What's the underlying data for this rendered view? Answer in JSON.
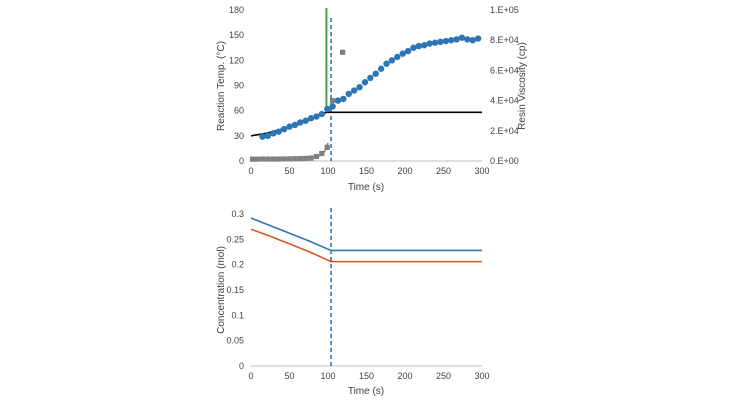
{
  "chart_data": [
    {
      "type": "scatter",
      "xlabel": "Time (s)",
      "ylabel": "Reaction Temp. (°C)",
      "y2label": "Resin Viscosity (cp)",
      "xlim": [
        0,
        300
      ],
      "ylim": [
        0,
        180
      ],
      "y2lim": [
        0,
        100000
      ],
      "x_ticks": [
        "0",
        "50",
        "100",
        "150",
        "200",
        "250",
        "300"
      ],
      "y_ticks": [
        "0",
        "30",
        "60",
        "90",
        "120",
        "150",
        "180"
      ],
      "y2_ticks": [
        "0.E+00",
        "2.E+04",
        "4.E+04",
        "6.E+04",
        "8.E+04",
        "1.E+05"
      ],
      "grid": false,
      "colors": {
        "temp_points": "#2e75b6",
        "temp_line": "#000000",
        "viscosity": "#808080",
        "gel_line": "#2ca02c",
        "dashed_line": "#2e75b6"
      },
      "vline_solid_x": 98,
      "vline_dashed_x": 104,
      "series": [
        {
          "axis": "left",
          "style": "markers",
          "x": [
            15,
            22,
            29,
            36,
            43,
            50,
            57,
            64,
            71,
            78,
            85,
            92,
            99,
            106,
            113,
            120,
            127,
            134,
            141,
            148,
            155,
            162,
            169,
            176,
            183,
            190,
            197,
            204,
            211,
            218,
            225,
            232,
            239,
            246,
            253,
            260,
            267,
            274,
            281,
            288,
            295
          ],
          "y": [
            29,
            30,
            33,
            35,
            38,
            41,
            43,
            46,
            48,
            51,
            53,
            56,
            62,
            65,
            72,
            74,
            80,
            84,
            88,
            94,
            99,
            104,
            110,
            116,
            120,
            124,
            128,
            131,
            135,
            137,
            138,
            140,
            141,
            142,
            143,
            144,
            145,
            147,
            145,
            144,
            146
          ]
        },
        {
          "axis": "left",
          "style": "line",
          "x": [
            0,
            20,
            40,
            60,
            80,
            98,
            120,
            150,
            200,
            250,
            300
          ],
          "y": [
            30,
            33,
            38,
            43,
            51,
            58,
            58,
            58,
            58,
            58,
            58
          ]
        },
        {
          "axis": "right",
          "style": "markers",
          "x": [
            2,
            8,
            15,
            22,
            29,
            36,
            43,
            50,
            57,
            64,
            71,
            78,
            85,
            92,
            99,
            106,
            119
          ],
          "y": [
            1200,
            1200,
            1300,
            1300,
            1300,
            1300,
            1400,
            1400,
            1500,
            1600,
            1700,
            2000,
            3000,
            5000,
            9000,
            40000,
            72000
          ]
        },
        {
          "axis": "right",
          "style": "line",
          "x": [
            0,
            40,
            60,
            80,
            90,
            95,
            98,
            100
          ],
          "y": [
            1200,
            1300,
            1500,
            2200,
            3500,
            6000,
            9000,
            12000
          ]
        }
      ]
    },
    {
      "type": "line",
      "xlabel": "Time (s)",
      "ylabel": "Concentration (mol)",
      "xlim": [
        0,
        300
      ],
      "ylim": [
        0,
        0.3
      ],
      "x_ticks": [
        "0",
        "50",
        "100",
        "150",
        "200",
        "250",
        "300"
      ],
      "y_ticks": [
        "0",
        "0.05",
        "0.1",
        "0.15",
        "0.2",
        "0.25",
        "0.3"
      ],
      "grid": false,
      "vline_dashed_x": 104,
      "series": [
        {
          "color": "#2e75b6",
          "x": [
            0,
            25,
            50,
            75,
            104,
            300
          ],
          "y": [
            0.292,
            0.277,
            0.262,
            0.247,
            0.228,
            0.228
          ]
        },
        {
          "color": "#e0541f",
          "x": [
            0,
            25,
            50,
            75,
            104,
            300
          ],
          "y": [
            0.27,
            0.256,
            0.241,
            0.226,
            0.206,
            0.206
          ]
        }
      ]
    }
  ]
}
